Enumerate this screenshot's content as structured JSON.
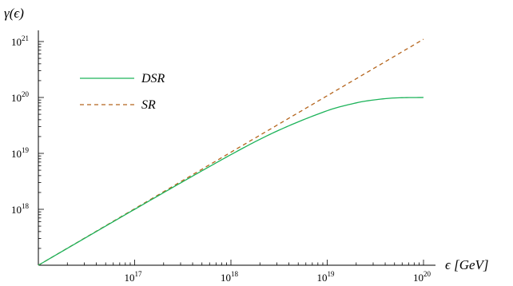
{
  "chart_data": {
    "type": "line",
    "title": "",
    "xlabel": "ϵ [GeV]",
    "ylabel": "γ(ϵ)",
    "x_scale": "log",
    "y_scale": "log",
    "xlim": [
      1e+16,
      1e+20
    ],
    "ylim": [
      1e+17,
      1e+21
    ],
    "x_ticks": [
      {
        "value": 1e+17,
        "base": "10",
        "exp": "17"
      },
      {
        "value": 1e+18,
        "base": "10",
        "exp": "18"
      },
      {
        "value": 1e+19,
        "base": "10",
        "exp": "19"
      },
      {
        "value": 1e+20,
        "base": "10",
        "exp": "20"
      }
    ],
    "y_ticks": [
      {
        "value": 1e+18,
        "base": "10",
        "exp": "18"
      },
      {
        "value": 1e+19,
        "base": "10",
        "exp": "19"
      },
      {
        "value": 1e+20,
        "base": "10",
        "exp": "20"
      },
      {
        "value": 1e+21,
        "base": "10",
        "exp": "21"
      }
    ],
    "grid": false,
    "legend_position": "upper-left",
    "series": [
      {
        "name": "DSR",
        "color": "#1db35a",
        "style": "solid",
        "x": [
          1e+16,
          1e+17,
          1e+18,
          3e+18,
          1e+19,
          2e+19,
          3e+19,
          5e+19,
          1e+20
        ],
        "y": [
          1e+17,
          1e+18,
          9.5e+18,
          2.5e+19,
          5.8e+19,
          8e+19,
          9e+19,
          9.8e+19,
          1e+20
        ]
      },
      {
        "name": "SR",
        "color": "#b5651d",
        "style": "dashed",
        "x": [
          1e+16,
          1e+20
        ],
        "y": [
          1e+17,
          1.1e+21
        ]
      }
    ]
  }
}
